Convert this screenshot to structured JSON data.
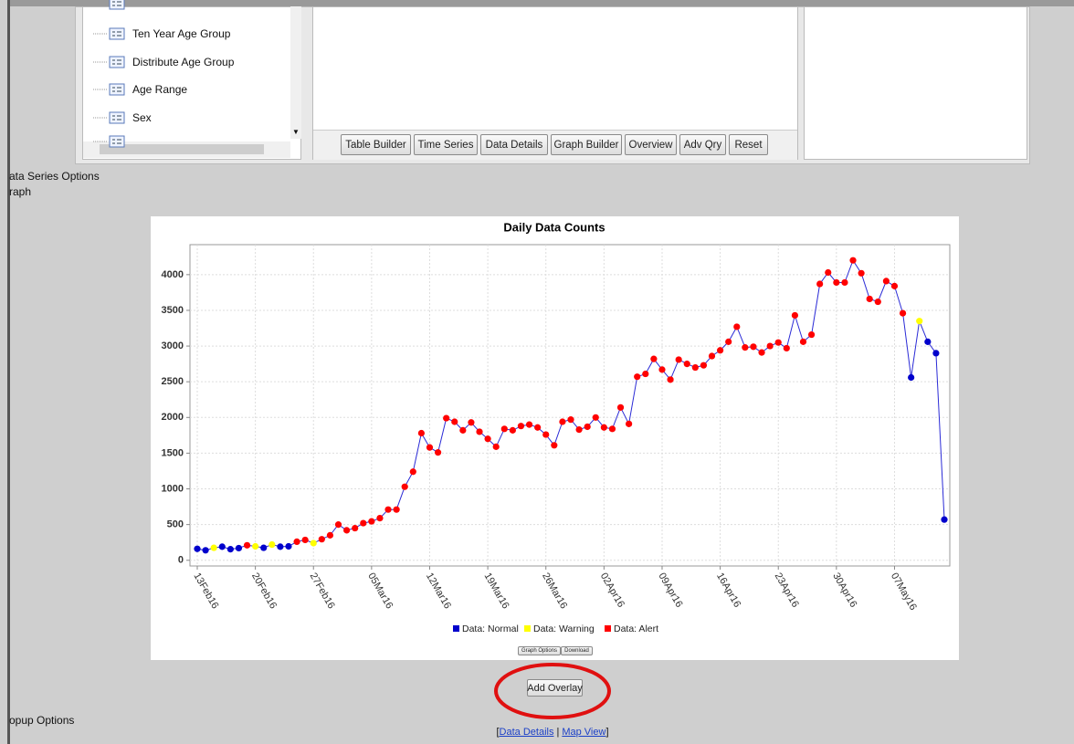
{
  "tree": {
    "items": [
      "Ten Year Age Group",
      "Distribute Age Group",
      "Age Range",
      "Sex"
    ]
  },
  "toolbar": {
    "buttons": [
      "Table Builder",
      "Time Series",
      "Data Details",
      "Graph Builder",
      "Overview",
      "Adv Qry",
      "Reset"
    ]
  },
  "sections": {
    "series_options": "ata Series Options",
    "graph": "raph",
    "popup_options": "opup Options"
  },
  "chart_data": {
    "type": "line",
    "title": "Daily Data Counts",
    "categories": [
      "13Feb16",
      null,
      null,
      null,
      null,
      null,
      null,
      "20Feb16",
      null,
      null,
      null,
      null,
      null,
      null,
      "27Feb16",
      null,
      null,
      null,
      null,
      null,
      null,
      "05Mar16",
      null,
      null,
      null,
      null,
      null,
      null,
      "12Mar16",
      null,
      null,
      null,
      null,
      null,
      null,
      "19Mar16",
      null,
      null,
      null,
      null,
      null,
      null,
      "26Mar16",
      null,
      null,
      null,
      null,
      null,
      null,
      "02Apr16",
      null,
      null,
      null,
      null,
      null,
      null,
      "09Apr16",
      null,
      null,
      null,
      null,
      null,
      null,
      "16Apr16",
      null,
      null,
      null,
      null,
      null,
      null,
      "23Apr16",
      null,
      null,
      null,
      null,
      null,
      null,
      "30Apr16",
      null,
      null,
      null,
      null,
      null,
      null,
      "07May16",
      null,
      null,
      null,
      null,
      null,
      null
    ],
    "values": [
      160,
      140,
      175,
      190,
      155,
      170,
      210,
      195,
      175,
      220,
      190,
      195,
      260,
      285,
      240,
      295,
      350,
      500,
      420,
      450,
      520,
      545,
      590,
      710,
      710,
      1030,
      1240,
      1780,
      1580,
      1510,
      1990,
      1940,
      1820,
      1930,
      1800,
      1700,
      1590,
      1840,
      1820,
      1880,
      1900,
      1860,
      1760,
      1610,
      1940,
      1970,
      1830,
      1870,
      2000,
      1860,
      1840,
      2140,
      1910,
      2570,
      2610,
      2820,
      2670,
      2530,
      2810,
      2750,
      2700,
      2730,
      2860,
      2940,
      3060,
      3270,
      2980,
      2990,
      2910,
      3000,
      3050,
      2970,
      3430,
      3060,
      3160,
      3870,
      4030,
      3890,
      3890,
      4200,
      4020,
      3660,
      3620,
      3910,
      3840,
      3460,
      2560,
      3350,
      3060,
      2900,
      570
    ],
    "marker_status": [
      0,
      0,
      1,
      0,
      0,
      0,
      2,
      1,
      0,
      1,
      0,
      0,
      2,
      2,
      1,
      2,
      2,
      2,
      2,
      2,
      2,
      2,
      2,
      2,
      2,
      2,
      2,
      2,
      2,
      2,
      2,
      2,
      2,
      2,
      2,
      2,
      2,
      2,
      2,
      2,
      2,
      2,
      2,
      2,
      2,
      2,
      2,
      2,
      2,
      2,
      2,
      2,
      2,
      2,
      2,
      2,
      2,
      2,
      2,
      2,
      2,
      2,
      2,
      2,
      2,
      2,
      2,
      2,
      2,
      2,
      2,
      2,
      2,
      2,
      2,
      2,
      2,
      2,
      2,
      2,
      2,
      2,
      2,
      2,
      2,
      2,
      0,
      1,
      0,
      0,
      0
    ],
    "legend": [
      {
        "name": "Data: Normal",
        "color": "#0000cc"
      },
      {
        "name": "Data: Warning",
        "color": "#ffff00"
      },
      {
        "name": "Data: Alert",
        "color": "#ff0000"
      }
    ],
    "line_color": "#2a2ad6",
    "ylim": [
      -80,
      4420
    ],
    "yticks": [
      0,
      500,
      1000,
      1500,
      2000,
      2500,
      3000,
      3500,
      4000
    ],
    "grid": true
  },
  "chart_buttons": [
    "Graph Options",
    "Download"
  ],
  "overlay_button": "Add Overlay",
  "links": {
    "prefix": "[",
    "items": [
      "Data Details",
      "Map View"
    ],
    "separator": "|",
    "suffix": "]"
  }
}
